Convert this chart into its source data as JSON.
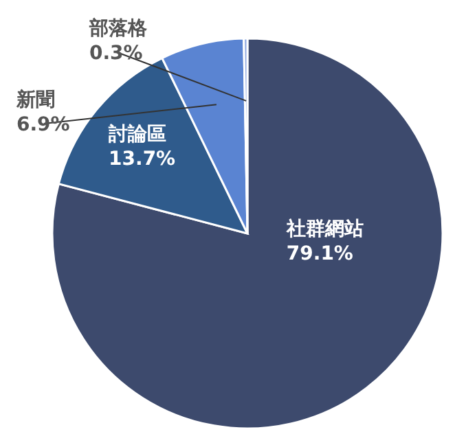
{
  "chart_data": {
    "type": "pie",
    "categories": [
      "社群網站",
      "討論區",
      "新聞",
      "部落格"
    ],
    "values": [
      79.1,
      13.7,
      6.9,
      0.3
    ],
    "value_labels": [
      "79.1%",
      "13.7%",
      "6.9%",
      "0.3%"
    ],
    "colors": [
      "#3d4a6d",
      "#2f5b8c",
      "#5a84d2",
      "#8fa9e0"
    ]
  }
}
